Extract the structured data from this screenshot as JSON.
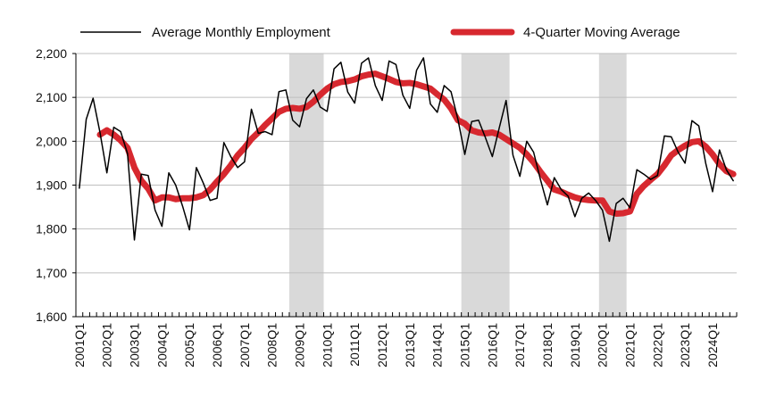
{
  "chart_data": {
    "type": "line",
    "title": "",
    "xlabel": "",
    "ylabel": "",
    "ylim": [
      1600,
      2200
    ],
    "yticks": [
      "1,600",
      "1,700",
      "1,800",
      "1,900",
      "2,000",
      "2,100",
      "2,200"
    ],
    "ytick_values": [
      1600,
      1700,
      1800,
      1900,
      2000,
      2100,
      2200
    ],
    "xtick_labels": [
      "2001Q1",
      "2002Q1",
      "2003Q1",
      "2004Q1",
      "2005Q1",
      "2006Q1",
      "2007Q1",
      "2008Q1",
      "2009Q1",
      "2010Q1",
      "2011Q1",
      "2012Q1",
      "2013Q1",
      "2014Q1",
      "2015Q1",
      "2016Q1",
      "2017Q1",
      "2018Q1",
      "2019Q1",
      "2020Q1",
      "2021Q1",
      "2022Q1",
      "2023Q1",
      "2024Q1"
    ],
    "grid": "horizontal",
    "legend_position": "top",
    "recession_shading": [
      {
        "start": "2008Q4",
        "end": "2009Q4"
      },
      {
        "start": "2015Q1",
        "end": "2016Q3"
      },
      {
        "start": "2020Q1",
        "end": "2020Q4"
      }
    ],
    "x": [
      "2001Q1",
      "2001Q2",
      "2001Q3",
      "2001Q4",
      "2002Q1",
      "2002Q2",
      "2002Q3",
      "2002Q4",
      "2003Q1",
      "2003Q2",
      "2003Q3",
      "2003Q4",
      "2004Q1",
      "2004Q2",
      "2004Q3",
      "2004Q4",
      "2005Q1",
      "2005Q2",
      "2005Q3",
      "2005Q4",
      "2006Q1",
      "2006Q2",
      "2006Q3",
      "2006Q4",
      "2007Q1",
      "2007Q2",
      "2007Q3",
      "2007Q4",
      "2008Q1",
      "2008Q2",
      "2008Q3",
      "2008Q4",
      "2009Q1",
      "2009Q2",
      "2009Q3",
      "2009Q4",
      "2010Q1",
      "2010Q2",
      "2010Q3",
      "2010Q4",
      "2011Q1",
      "2011Q2",
      "2011Q3",
      "2011Q4",
      "2012Q1",
      "2012Q2",
      "2012Q3",
      "2012Q4",
      "2013Q1",
      "2013Q2",
      "2013Q3",
      "2013Q4",
      "2014Q1",
      "2014Q2",
      "2014Q3",
      "2014Q4",
      "2015Q1",
      "2015Q2",
      "2015Q3",
      "2015Q4",
      "2016Q1",
      "2016Q2",
      "2016Q3",
      "2016Q4",
      "2017Q1",
      "2017Q2",
      "2017Q3",
      "2017Q4",
      "2018Q1",
      "2018Q2",
      "2018Q3",
      "2018Q4",
      "2019Q1",
      "2019Q2",
      "2019Q3",
      "2019Q4",
      "2020Q1",
      "2020Q2",
      "2020Q3",
      "2020Q4",
      "2021Q1",
      "2021Q2",
      "2021Q3",
      "2021Q4",
      "2022Q1",
      "2022Q2",
      "2022Q3",
      "2022Q4",
      "2023Q1",
      "2023Q2",
      "2023Q3",
      "2023Q4",
      "2024Q1",
      "2024Q2",
      "2024Q3",
      "2024Q4"
    ],
    "series": [
      {
        "name": "Average Monthly Employment",
        "color": "#000000",
        "values": [
          1893,
          2050,
          2098,
          2020,
          1928,
          2032,
          2022,
          1972,
          1775,
          1925,
          1922,
          1843,
          1806,
          1928,
          1900,
          1852,
          1798,
          1940,
          1905,
          1865,
          1870,
          1997,
          1965,
          1940,
          1953,
          2073,
          2018,
          2022,
          2015,
          2113,
          2117,
          2048,
          2033,
          2097,
          2117,
          2078,
          2068,
          2165,
          2180,
          2112,
          2087,
          2178,
          2190,
          2127,
          2093,
          2183,
          2175,
          2105,
          2075,
          2162,
          2190,
          2085,
          2066,
          2127,
          2113,
          2050,
          1970,
          2045,
          2048,
          2008,
          1965,
          2030,
          2093,
          1968,
          1920,
          2000,
          1975,
          1912,
          1855,
          1917,
          1890,
          1875,
          1828,
          1870,
          1882,
          1865,
          1843,
          1772,
          1858,
          1870,
          1848,
          1935,
          1925,
          1913,
          1922,
          2012,
          2010,
          1975,
          1950,
          2047,
          2035,
          1950,
          1885,
          1980,
          1935,
          1910
        ]
      },
      {
        "name": "4-Quarter Moving Average",
        "color": "#d7282f",
        "values": [
          null,
          null,
          null,
          2015,
          2025,
          2015,
          2002,
          1985,
          1940,
          1910,
          1892,
          1865,
          1872,
          1872,
          1868,
          1870,
          1870,
          1872,
          1877,
          1890,
          1908,
          1925,
          1945,
          1968,
          1985,
          2005,
          2020,
          2037,
          2052,
          2067,
          2074,
          2076,
          2074,
          2078,
          2090,
          2106,
          2120,
          2130,
          2135,
          2137,
          2141,
          2148,
          2152,
          2154,
          2148,
          2142,
          2135,
          2132,
          2133,
          2130,
          2125,
          2120,
          2107,
          2095,
          2075,
          2048,
          2040,
          2025,
          2020,
          2018,
          2020,
          2015,
          2005,
          1995,
          1985,
          1970,
          1952,
          1930,
          1910,
          1890,
          1885,
          1878,
          1872,
          1868,
          1866,
          1865,
          1865,
          1840,
          1835,
          1836,
          1840,
          1880,
          1898,
          1912,
          1925,
          1945,
          1968,
          1980,
          1990,
          1998,
          2000,
          1988,
          1970,
          1948,
          1932,
          1925
        ]
      }
    ]
  },
  "legend": {
    "items": [
      {
        "label": "Average Monthly Employment",
        "color": "#000000"
      },
      {
        "label": "4-Quarter Moving Average",
        "color": "#d7282f"
      }
    ]
  },
  "colors": {
    "shading": "#d9d9d9",
    "grid": "#bfbfbf",
    "axis": "#000000"
  }
}
